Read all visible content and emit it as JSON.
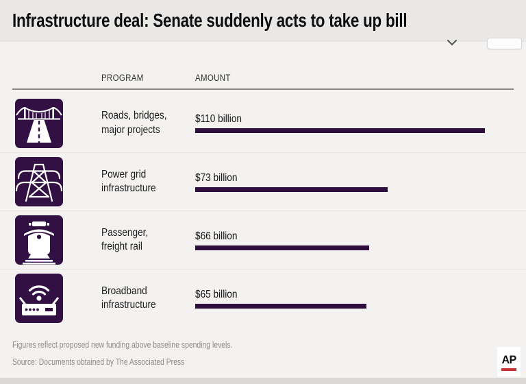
{
  "title_bar": {
    "title": "Infrastructure deal: Senate suddenly acts to take up bill"
  },
  "chart_data": {
    "type": "bar",
    "orientation": "horizontal",
    "title": "Infrastructure deal: Senate suddenly acts to take up bill",
    "columns": [
      "PROGRAM",
      "AMOUNT"
    ],
    "categories": [
      "Roads, bridges,\nmajor projects",
      "Power grid\ninfrastructure",
      "Passenger,\nfreight rail",
      "Broadband\ninfrastructure"
    ],
    "values": [
      110,
      73,
      66,
      65
    ],
    "value_labels": [
      "$110 billion",
      "$73 billion",
      "$66 billion",
      "$65 billion"
    ],
    "xlim": [
      0,
      110
    ],
    "bar_color": "#2e0e3d",
    "grid": "off",
    "legend": "none"
  },
  "icons": {
    "embed_toggle": "chevron-down-icon",
    "rows": [
      "road-bridge-icon",
      "power-grid-icon",
      "train-icon",
      "wifi-router-icon"
    ]
  },
  "footer": {
    "note": "Figures reflect proposed new funding above baseline spending levels.",
    "source": "Source: Documents obtained by The Associated Press"
  },
  "ap_logo": {
    "text": "AP"
  },
  "colors": {
    "icon_bg": "#321043",
    "bar": "#2e0e3d",
    "ap_red": "#c53231",
    "titlebar_bg": "#e9e8e6",
    "page_bg": "#f3f2f0",
    "muted_text": "#8e8c89",
    "bottom_strip": "#d9d8d5"
  }
}
